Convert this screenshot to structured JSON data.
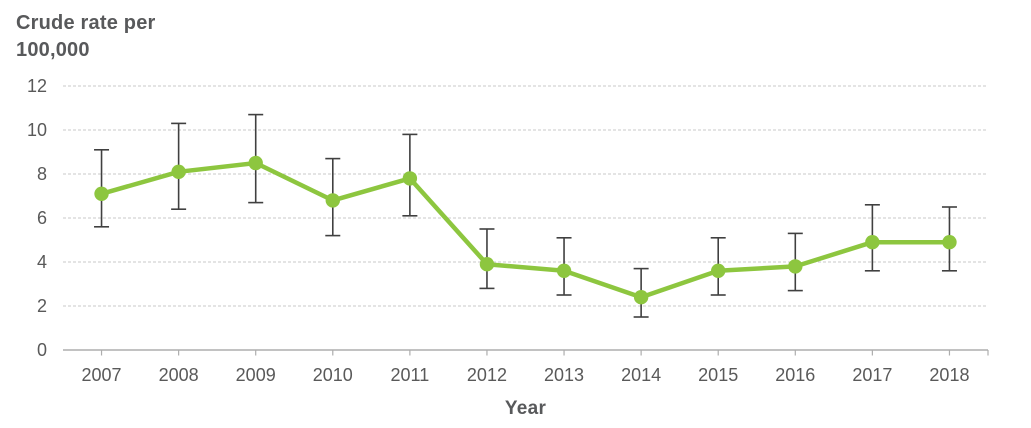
{
  "chart_data": {
    "type": "line",
    "title": "Crude rate per 100,000",
    "title_lines": [
      "Crude rate per",
      "100,000"
    ],
    "xlabel": "Year",
    "ylabel": "Crude rate per 100,000",
    "categories": [
      "2007",
      "2008",
      "2009",
      "2010",
      "2011",
      "2012",
      "2013",
      "2014",
      "2015",
      "2016",
      "2017",
      "2018"
    ],
    "series": [
      {
        "name": "Crude rate per 100,000",
        "values": [
          7.1,
          8.1,
          8.5,
          6.8,
          7.8,
          3.9,
          3.6,
          2.4,
          3.6,
          3.8,
          4.9,
          4.9
        ],
        "ci_low": [
          5.6,
          6.4,
          6.7,
          5.2,
          6.1,
          2.8,
          2.5,
          1.5,
          2.5,
          2.7,
          3.6,
          3.6
        ],
        "ci_high": [
          9.1,
          10.3,
          10.7,
          8.7,
          9.8,
          5.5,
          5.1,
          3.7,
          5.1,
          5.3,
          6.6,
          6.5
        ]
      }
    ],
    "ylim": [
      0,
      12
    ],
    "yticks": [
      0,
      2,
      4,
      6,
      8,
      10,
      12
    ],
    "grid": "horizontal-dashed",
    "legend": "none",
    "marker": "circle",
    "error_bars": true,
    "colors": {
      "line": "#8DC63F",
      "marker": "#8DC63F",
      "error_bar": "#404040",
      "grid": "#C9C9C9",
      "axis": "#ADADAD",
      "tick_text": "#595959",
      "title_text": "#58595B"
    }
  }
}
